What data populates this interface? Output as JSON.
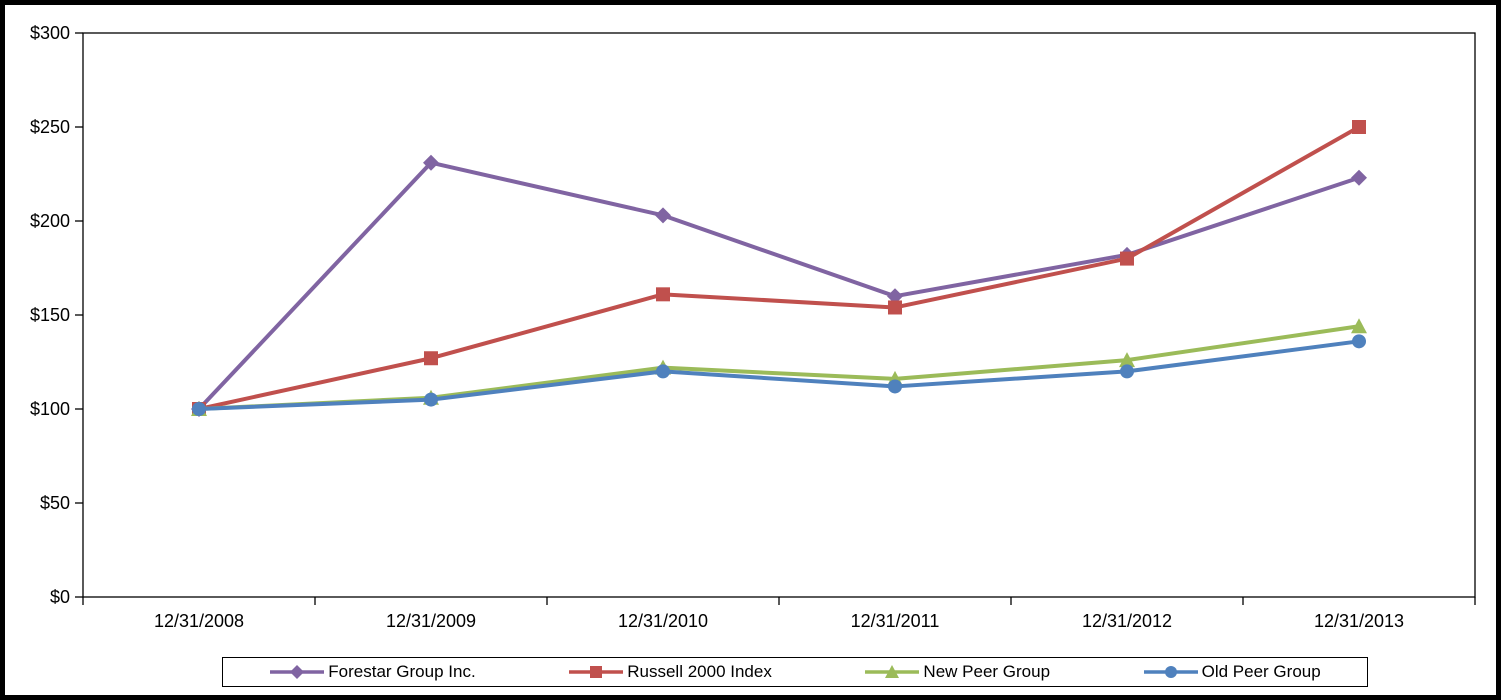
{
  "chart_data": {
    "type": "line",
    "title": "",
    "xlabel": "",
    "ylabel": "",
    "x": [
      "12/31/2008",
      "12/31/2009",
      "12/31/2010",
      "12/31/2011",
      "12/31/2012",
      "12/31/2013"
    ],
    "series": [
      {
        "name": "Forestar Group Inc.",
        "color": "#8064A2",
        "marker": "diamond",
        "values": [
          100,
          231,
          203,
          160,
          182,
          223
        ]
      },
      {
        "name": "Russell 2000 Index",
        "color": "#C0504D",
        "marker": "square",
        "values": [
          100,
          127,
          161,
          154,
          180,
          250
        ]
      },
      {
        "name": "New Peer Group",
        "color": "#9BBB59",
        "marker": "triangle",
        "values": [
          100,
          106,
          122,
          116,
          126,
          144
        ]
      },
      {
        "name": "Old Peer Group",
        "color": "#4F81BD",
        "marker": "circle",
        "values": [
          100,
          105,
          120,
          112,
          120,
          136
        ]
      }
    ],
    "ylim": [
      0,
      300
    ],
    "ytick_values": [
      0,
      50,
      100,
      150,
      200,
      250,
      300
    ],
    "ytick_labels": [
      "$0",
      "$50",
      "$100",
      "$150",
      "$200",
      "$250",
      "$300"
    ],
    "grid": false,
    "legend_position": "bottom",
    "plot_border_color": "#000000",
    "background_color": "#ffffff",
    "frame_color": "#000000"
  }
}
